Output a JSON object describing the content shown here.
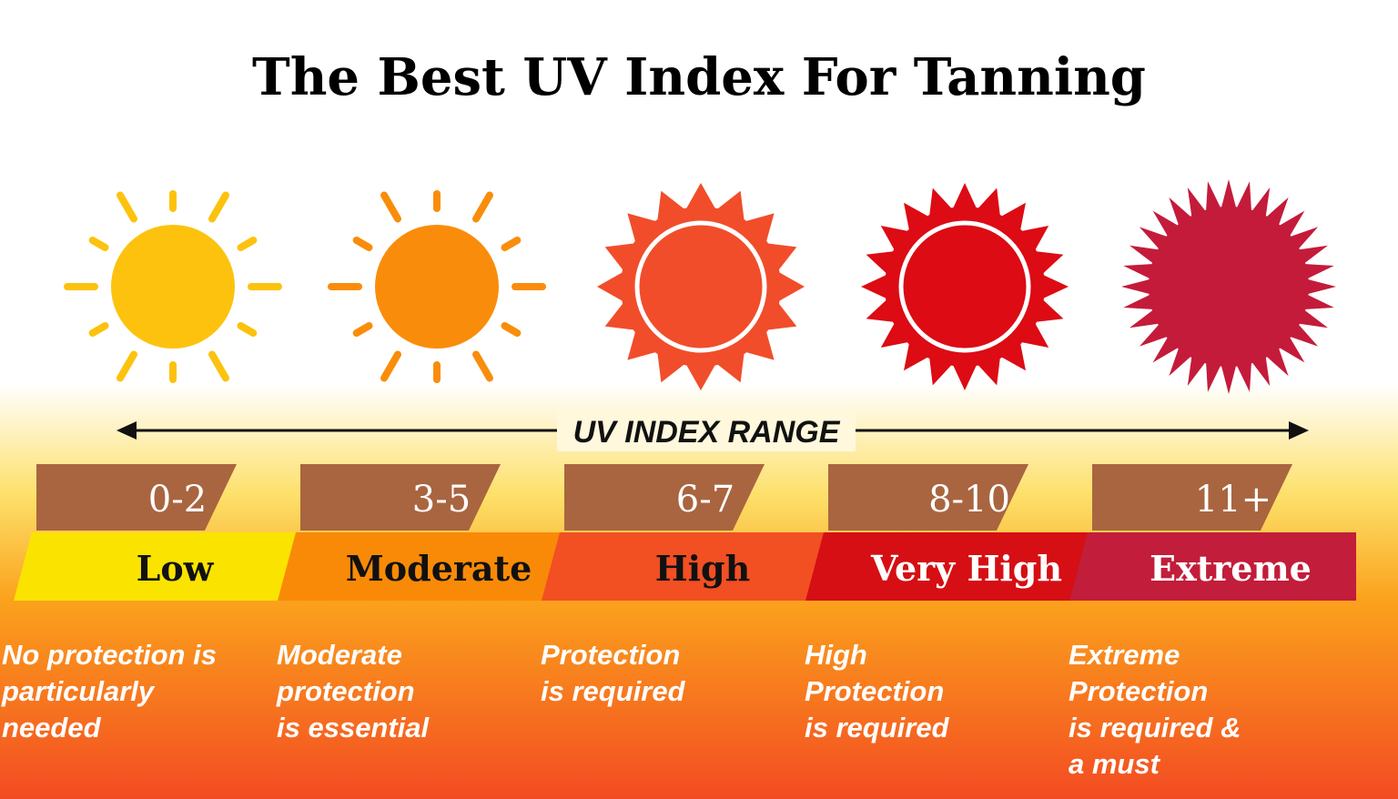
{
  "title": "The Best UV Index For Tanning",
  "range_label": "UV INDEX RANGE",
  "levels": [
    {
      "range": "0-2",
      "label": "Low",
      "color": "#fbe300",
      "sun_color": "#fcc20e",
      "text_color": "#111111",
      "description": [
        "No protection is",
        "particularly",
        "needed"
      ]
    },
    {
      "range": "3-5",
      "label": "Moderate",
      "color": "#f98a07",
      "sun_color": "#f98d0b",
      "text_color": "#111111",
      "description": [
        "Moderate",
        "protection",
        "is essential"
      ]
    },
    {
      "range": "6-7",
      "label": "High",
      "color": "#f24f23",
      "sun_color": "#f14d2a",
      "text_color": "#111111",
      "description": [
        "Protection",
        "is required"
      ]
    },
    {
      "range": "8-10",
      "label": "Very High",
      "color": "#d50f14",
      "sun_color": "#dc0b14",
      "text_color": "#ffffff",
      "description": [
        "High",
        "Protection",
        "is required"
      ]
    },
    {
      "range": "11+",
      "label": "Extreme",
      "color": "#c21d3a",
      "sun_color": "#c41b3b",
      "text_color": "#ffffff",
      "description": [
        "Extreme",
        "Protection",
        "is required &",
        "a must"
      ]
    }
  ]
}
